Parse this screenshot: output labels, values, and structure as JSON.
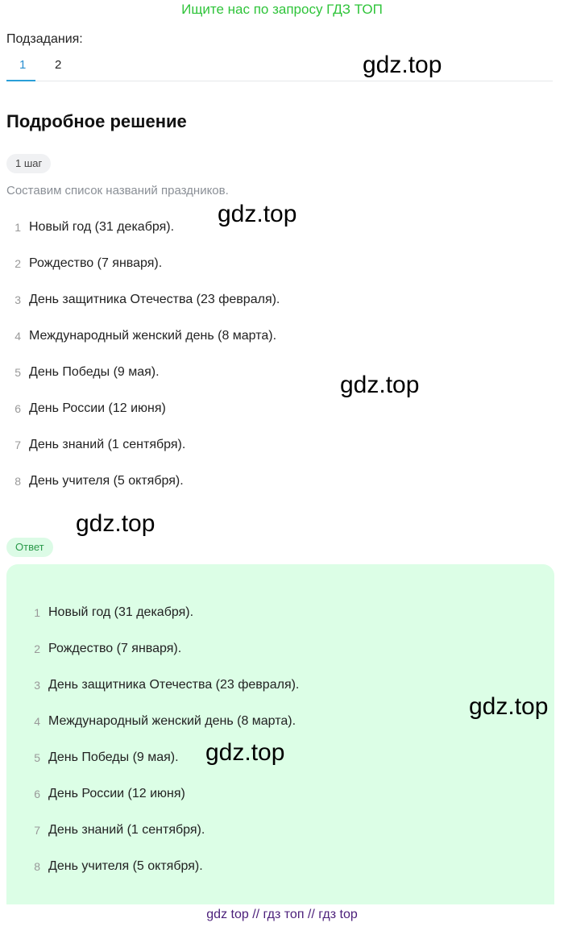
{
  "promo": "Ищите нас по запросу ГДЗ ТОП",
  "subtasks": {
    "label": "Подзадания:",
    "tabs": [
      "1",
      "2"
    ],
    "active": 0
  },
  "solution": {
    "title": "Подробное решение",
    "step_label": "1 шаг",
    "step_text": "Составим список названий праздников.",
    "items": [
      "Новый год (31 декабря).",
      "Рождество (7 января).",
      "День защитника Отечества (23 февраля).",
      "Международный женский день (8 марта).",
      "День Победы (9 мая).",
      "День России (12 июня)",
      "День знаний (1 сентября).",
      "День учителя (5 октября)."
    ]
  },
  "answer": {
    "label": "Ответ",
    "items": [
      "Новый год (31 декабря).",
      "Рождество (7 января).",
      "День защитника Отечества (23 февраля).",
      "Международный женский день (8 марта).",
      "День Победы (9 мая).",
      "День России (12 июня)",
      "День знаний (1 сентября).",
      "День учителя (5 октября)."
    ]
  },
  "watermarks": [
    "gdz.top",
    "gdz.top",
    "gdz.top",
    "gdz.top",
    "gdz.top",
    "gdz.top"
  ],
  "footer": "gdz top  //  гдз топ  //  гдз top",
  "colors": {
    "promo": "#2fc43a",
    "tab_active": "#2a9fd8",
    "answer_bg": "#dcfee6",
    "footer": "#4b1f7a"
  }
}
